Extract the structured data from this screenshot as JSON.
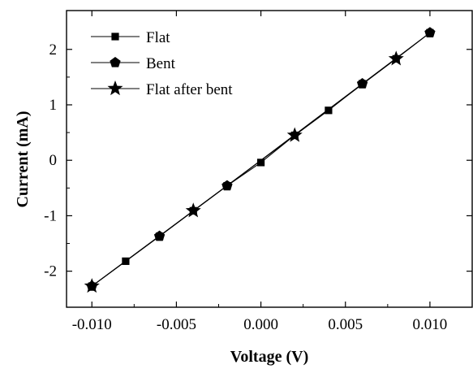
{
  "chart_data": {
    "type": "line",
    "title": "",
    "xlabel": "Voltage (V)",
    "ylabel": "Current (mA)",
    "xlim": [
      -0.0115,
      0.0125
    ],
    "ylim": [
      -2.65,
      2.7
    ],
    "x_ticks": [
      -0.01,
      -0.005,
      0.0,
      0.005,
      0.01
    ],
    "x_tick_labels": [
      "-0.010",
      "-0.005",
      "0.000",
      "0.005",
      "0.010"
    ],
    "y_ticks": [
      -2,
      -1,
      0,
      1,
      2
    ],
    "y_tick_labels": [
      "-2",
      "-1",
      "0",
      "1",
      "2"
    ],
    "grid": false,
    "legend_position": "top-left",
    "series": [
      {
        "name": "Flat",
        "marker": "square",
        "x": [
          -0.01,
          -0.008,
          -0.006,
          -0.004,
          -0.002,
          0.0,
          0.002,
          0.004,
          0.006,
          0.008,
          0.01
        ],
        "y": [
          -2.27,
          -1.82,
          -1.37,
          -0.91,
          -0.46,
          -0.04,
          0.45,
          0.9,
          1.38,
          1.83,
          2.3
        ]
      },
      {
        "name": "Bent",
        "marker": "pentagon",
        "x": [
          -0.01,
          -0.006,
          -0.002,
          0.006,
          0.01
        ],
        "y": [
          -2.27,
          -1.37,
          -0.46,
          1.38,
          2.3
        ]
      },
      {
        "name": "Flat after bent",
        "marker": "star",
        "x": [
          -0.01,
          -0.004,
          0.002,
          0.008
        ],
        "y": [
          -2.27,
          -0.91,
          0.45,
          1.83
        ]
      }
    ]
  }
}
